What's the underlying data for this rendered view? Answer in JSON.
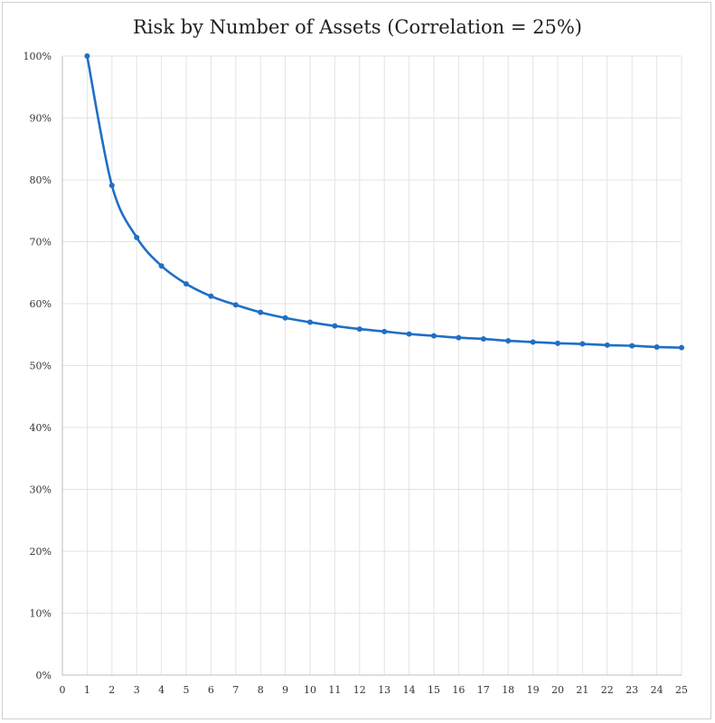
{
  "chart_data": {
    "type": "line",
    "title": "Risk by Number of Assets (Correlation = 25%)",
    "xlabel": "",
    "ylabel": "",
    "x": [
      1,
      2,
      3,
      4,
      5,
      6,
      7,
      8,
      9,
      10,
      11,
      12,
      13,
      14,
      15,
      16,
      17,
      18,
      19,
      20,
      21,
      22,
      23,
      24,
      25
    ],
    "series": [
      {
        "values": [
          100.0,
          79.1,
          70.7,
          66.1,
          63.2,
          61.2,
          59.8,
          58.6,
          57.7,
          57.0,
          56.4,
          55.9,
          55.5,
          55.1,
          54.8,
          54.5,
          54.3,
          54.0,
          53.8,
          53.6,
          53.5,
          53.3,
          53.2,
          53.0,
          52.9
        ]
      }
    ],
    "xlim": [
      0,
      25
    ],
    "ylim": [
      0,
      100
    ],
    "x_ticks": [
      "0",
      "1",
      "2",
      "3",
      "4",
      "5",
      "6",
      "7",
      "8",
      "9",
      "10",
      "11",
      "12",
      "13",
      "14",
      "15",
      "16",
      "17",
      "18",
      "19",
      "20",
      "21",
      "22",
      "23",
      "24",
      "25"
    ],
    "y_ticks": [
      "0%",
      "10%",
      "20%",
      "30%",
      "40%",
      "50%",
      "60%",
      "70%",
      "80%",
      "90%",
      "100%"
    ],
    "grid": true,
    "colors": {
      "line": "#1f6fc5",
      "grid": "#e3e3e3",
      "axis": "#bdbdbd"
    }
  }
}
